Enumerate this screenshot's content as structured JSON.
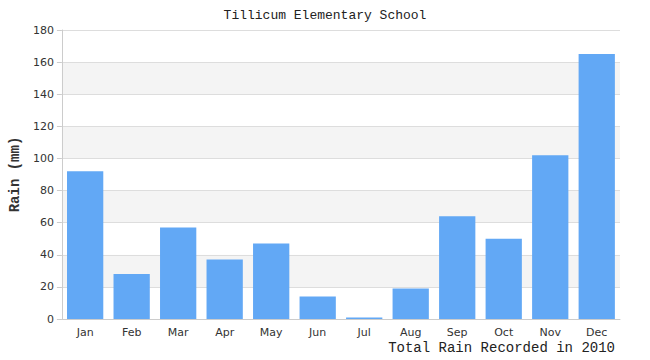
{
  "chart_data": {
    "type": "bar",
    "title": "Tillicum Elementary School",
    "x_label": "Total Rain Recorded in 2010",
    "y_label": "Rain (mm)",
    "categories": [
      "Jan",
      "Feb",
      "Mar",
      "Apr",
      "May",
      "Jun",
      "Jul",
      "Aug",
      "Sep",
      "Oct",
      "Nov",
      "Dec"
    ],
    "values": [
      92,
      28,
      57,
      37,
      47,
      14,
      1,
      19,
      64,
      50,
      102,
      165
    ],
    "color": "#62a8f5",
    "ylim": [
      0,
      180
    ],
    "yticks": [
      0,
      20,
      40,
      60,
      80,
      100,
      120,
      140,
      160,
      180
    ],
    "grid": true
  }
}
